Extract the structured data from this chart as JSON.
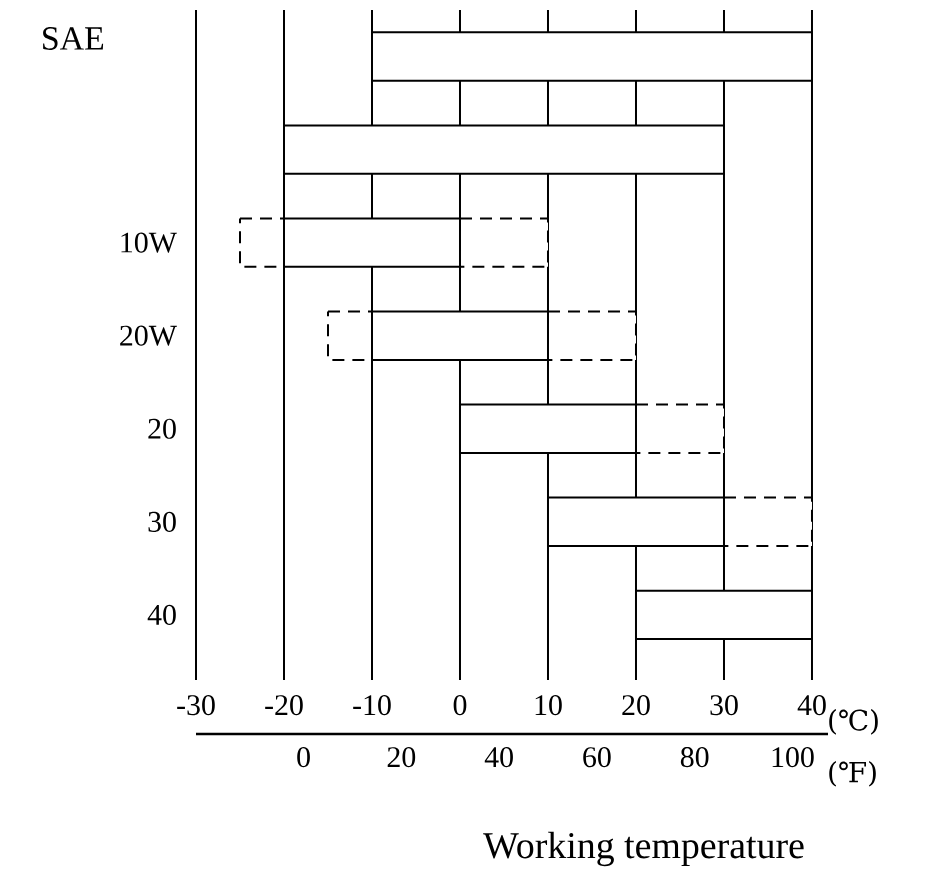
{
  "chart_data": {
    "type": "bar",
    "orientation": "horizontal",
    "ylabel": "SAE",
    "xlabel": "(℃)",
    "x2label": "(℉)",
    "categories": [
      null,
      null,
      "10W",
      "20W",
      "20",
      "30",
      "40"
    ],
    "series": [
      {
        "color": "#ffffff",
        "line_style": "dashed",
        "base": [
          null,
          null,
          -25,
          -15,
          null,
          null,
          null
        ],
        "values": [
          null,
          null,
          5,
          5,
          null,
          null,
          null
        ]
      },
      {
        "color": "#ffffff",
        "line_style": "dashed",
        "base": [
          null,
          null,
          0,
          10,
          20,
          30,
          null
        ],
        "values": [
          null,
          null,
          10,
          10,
          10,
          10,
          null
        ]
      },
      {
        "color": "#ffffff",
        "line_style": "solid",
        "base": [
          -10,
          -20,
          -20,
          -10,
          0,
          10,
          20
        ],
        "values": [
          50,
          50,
          20,
          20,
          20,
          20,
          20
        ]
      }
    ],
    "xlim": [
      -30,
      40
    ],
    "xticks": [
      -30,
      -20,
      -10,
      0,
      10,
      20,
      30,
      40
    ],
    "x2lim": [
      -22,
      104
    ],
    "x2ticks": [
      0,
      20,
      40,
      60,
      80,
      100
    ],
    "grid": "x",
    "annotations": [
      "Working temperature"
    ]
  }
}
